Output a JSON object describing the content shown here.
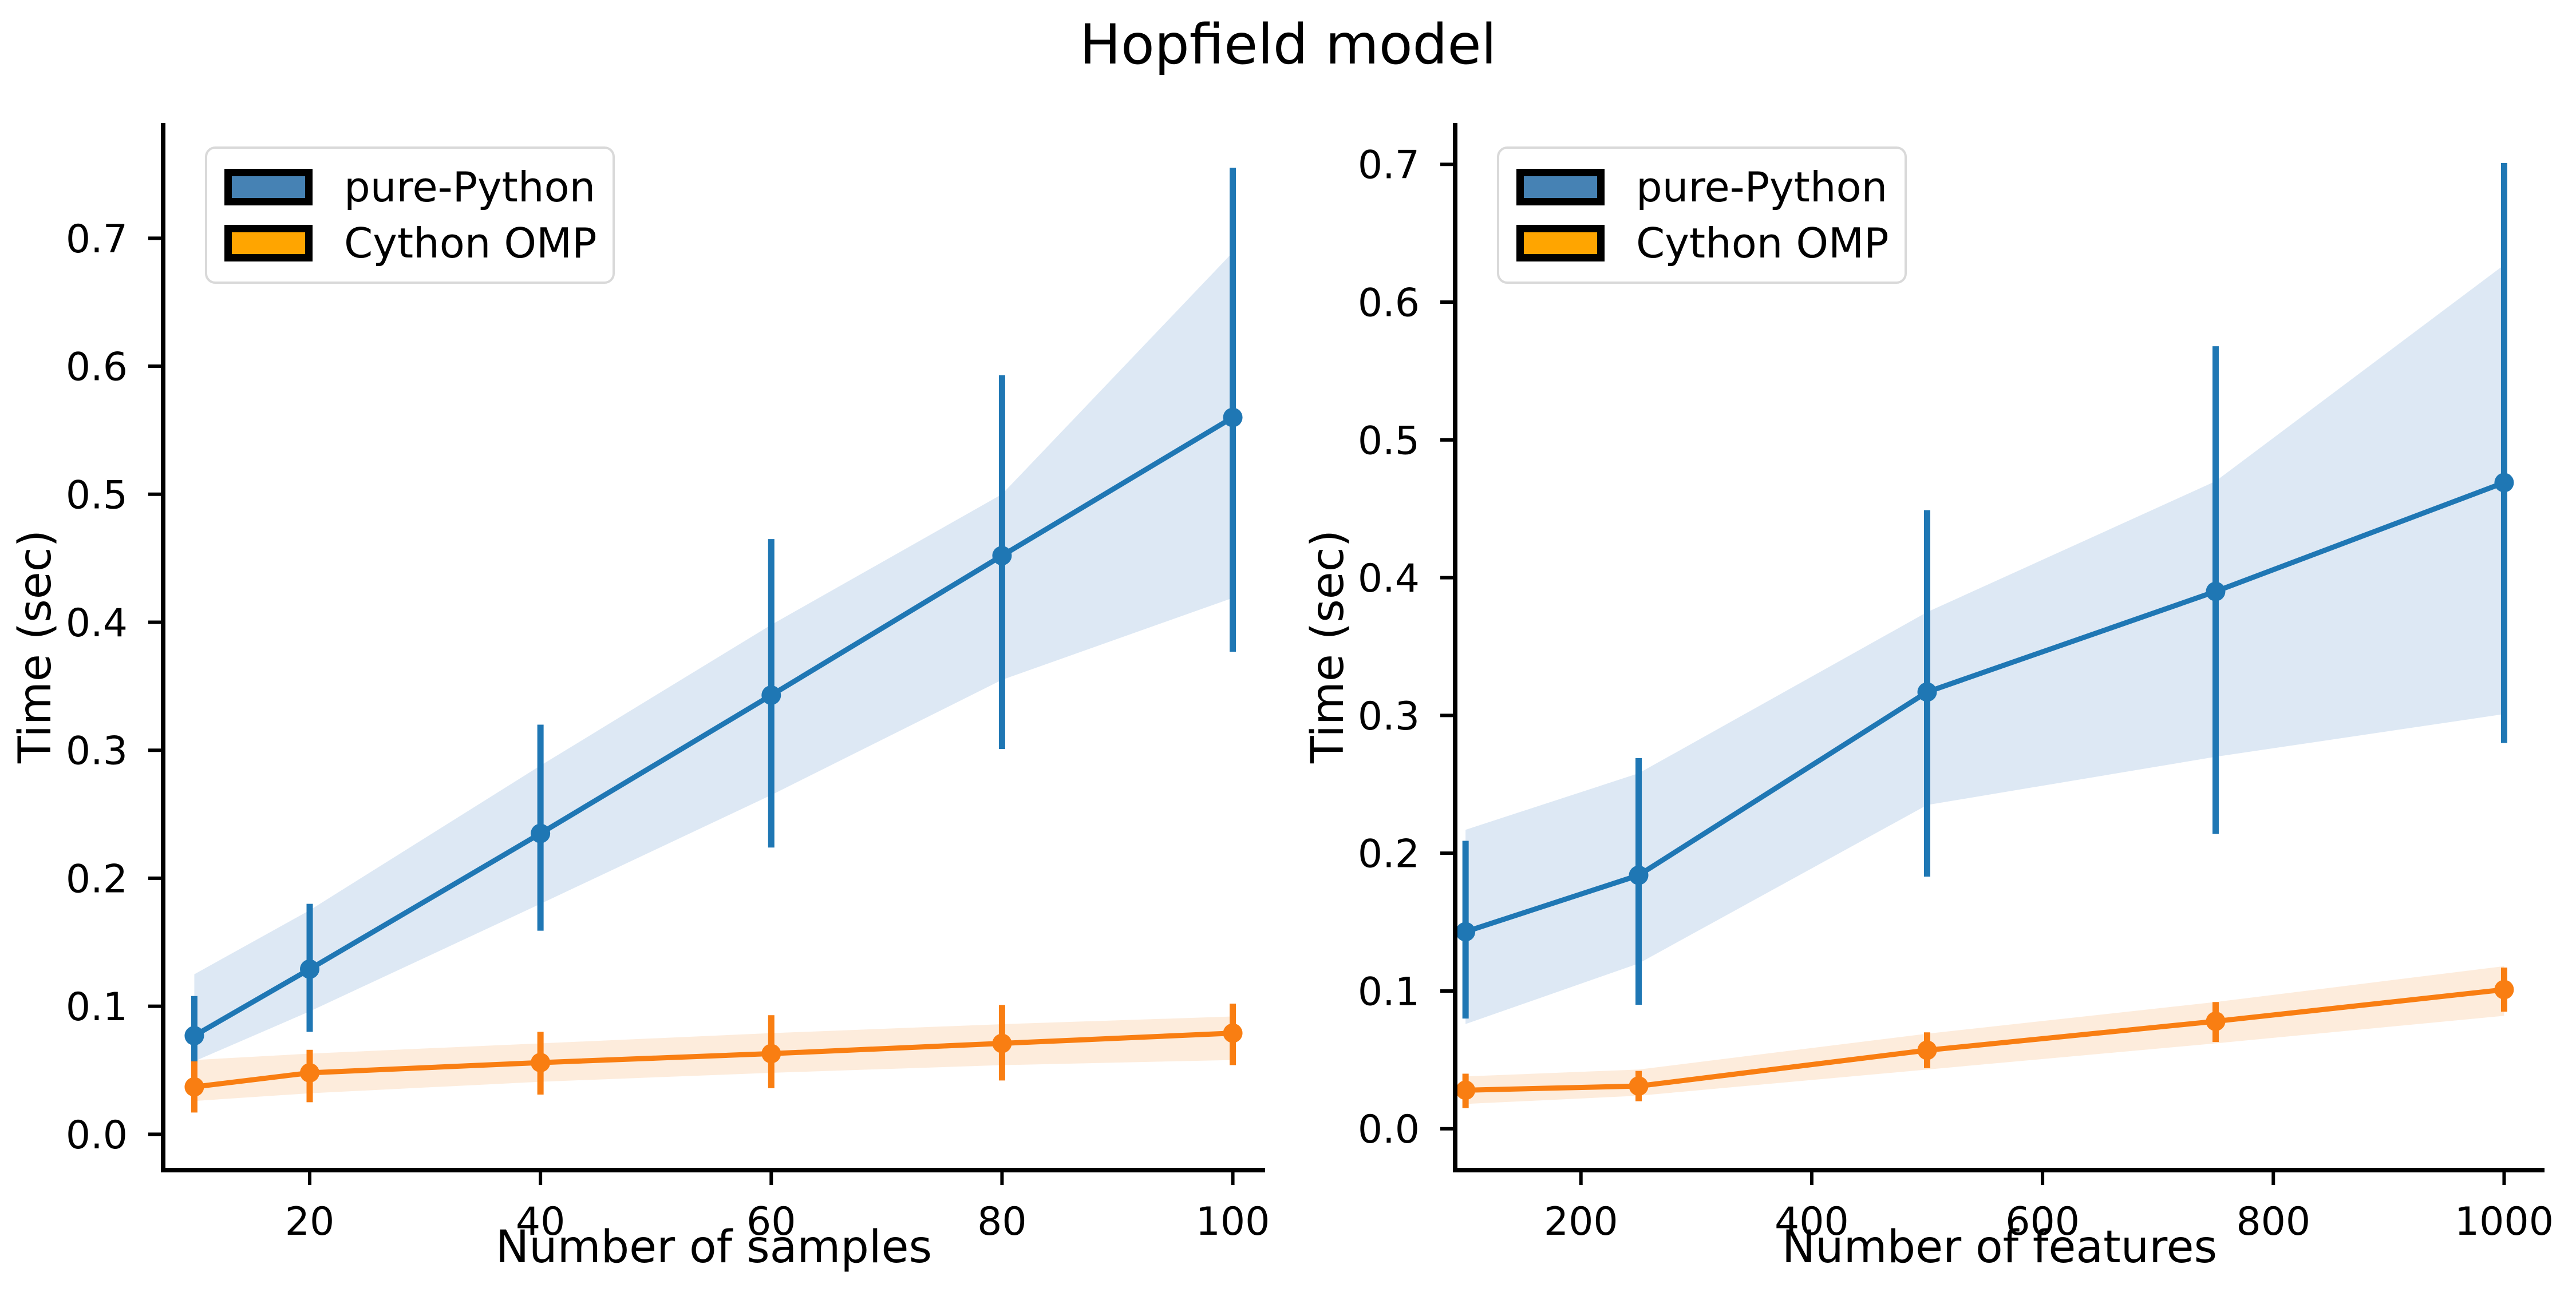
{
  "figure": {
    "title": "Hopfield model",
    "background": "#ffffff"
  },
  "legend": {
    "border_color": "#d9d9d9",
    "items": [
      {
        "label": "pure-Python",
        "patch_color": "#4682B4"
      },
      {
        "label": "Cython OMP",
        "patch_color": "#FFA500"
      }
    ]
  },
  "chart_data": [
    {
      "type": "line",
      "title": "Hopfield model",
      "xlabel": "Number of samples",
      "ylabel": "Time (sec)",
      "grid": false,
      "legend_position": "upper left",
      "x": [
        10,
        20,
        40,
        60,
        80,
        100
      ],
      "xticks": [
        20,
        40,
        60,
        80,
        100
      ],
      "yticks": [
        0.0,
        0.1,
        0.2,
        0.3,
        0.4,
        0.5,
        0.6,
        0.7
      ],
      "xlim": [
        7.3,
        102.8
      ],
      "ylim": [
        -0.028,
        0.79
      ],
      "series": [
        {
          "name": "pure-Python",
          "color": "#1f77b4",
          "band_color": "#dde8f4",
          "y": [
            0.077,
            0.129,
            0.235,
            0.343,
            0.452,
            0.56
          ],
          "err_lo": [
            0.056,
            0.08,
            0.159,
            0.224,
            0.301,
            0.377
          ],
          "err_hi": [
            0.108,
            0.18,
            0.32,
            0.465,
            0.593,
            0.755
          ],
          "band_lo": [
            0.057,
            0.096,
            0.18,
            0.265,
            0.355,
            0.419
          ],
          "band_hi": [
            0.125,
            0.175,
            0.288,
            0.398,
            0.5,
            0.689
          ]
        },
        {
          "name": "Cython OMP",
          "color": "#f97e12",
          "band_color": "#fdecdc",
          "y": [
            0.037,
            0.048,
            0.056,
            0.063,
            0.071,
            0.079
          ],
          "err_lo": [
            0.017,
            0.025,
            0.031,
            0.036,
            0.042,
            0.054
          ],
          "err_hi": [
            0.057,
            0.066,
            0.08,
            0.093,
            0.101,
            0.102
          ],
          "band_lo": [
            0.026,
            0.032,
            0.041,
            0.048,
            0.054,
            0.058
          ],
          "band_hi": [
            0.058,
            0.063,
            0.071,
            0.079,
            0.086,
            0.092
          ]
        }
      ]
    },
    {
      "type": "line",
      "title": "Hopfield model",
      "xlabel": "Number of features",
      "ylabel": "Time (sec)",
      "grid": false,
      "legend_position": "upper left",
      "x": [
        100,
        250,
        500,
        750,
        1000
      ],
      "xticks": [
        200,
        400,
        600,
        800,
        1000
      ],
      "yticks": [
        0.0,
        0.1,
        0.2,
        0.3,
        0.4,
        0.5,
        0.6,
        0.7
      ],
      "xlim": [
        91,
        1035
      ],
      "ylim": [
        -0.03,
        0.73
      ],
      "series": [
        {
          "name": "pure-Python",
          "color": "#1f77b4",
          "band_color": "#dde8f4",
          "y": [
            0.143,
            0.184,
            0.317,
            0.39,
            0.469
          ],
          "err_lo": [
            0.08,
            0.09,
            0.183,
            0.214,
            0.28
          ],
          "err_hi": [
            0.209,
            0.269,
            0.449,
            0.568,
            0.701
          ],
          "band_lo": [
            0.076,
            0.12,
            0.235,
            0.27,
            0.301
          ],
          "band_hi": [
            0.217,
            0.258,
            0.375,
            0.47,
            0.627
          ]
        },
        {
          "name": "Cython OMP",
          "color": "#f97e12",
          "band_color": "#fdecdc",
          "y": [
            0.028,
            0.031,
            0.057,
            0.078,
            0.101
          ],
          "err_lo": [
            0.015,
            0.02,
            0.044,
            0.063,
            0.085
          ],
          "err_hi": [
            0.04,
            0.042,
            0.07,
            0.092,
            0.117
          ],
          "band_lo": [
            0.018,
            0.024,
            0.043,
            0.062,
            0.082
          ],
          "band_hi": [
            0.038,
            0.043,
            0.069,
            0.092,
            0.118
          ]
        }
      ]
    }
  ]
}
